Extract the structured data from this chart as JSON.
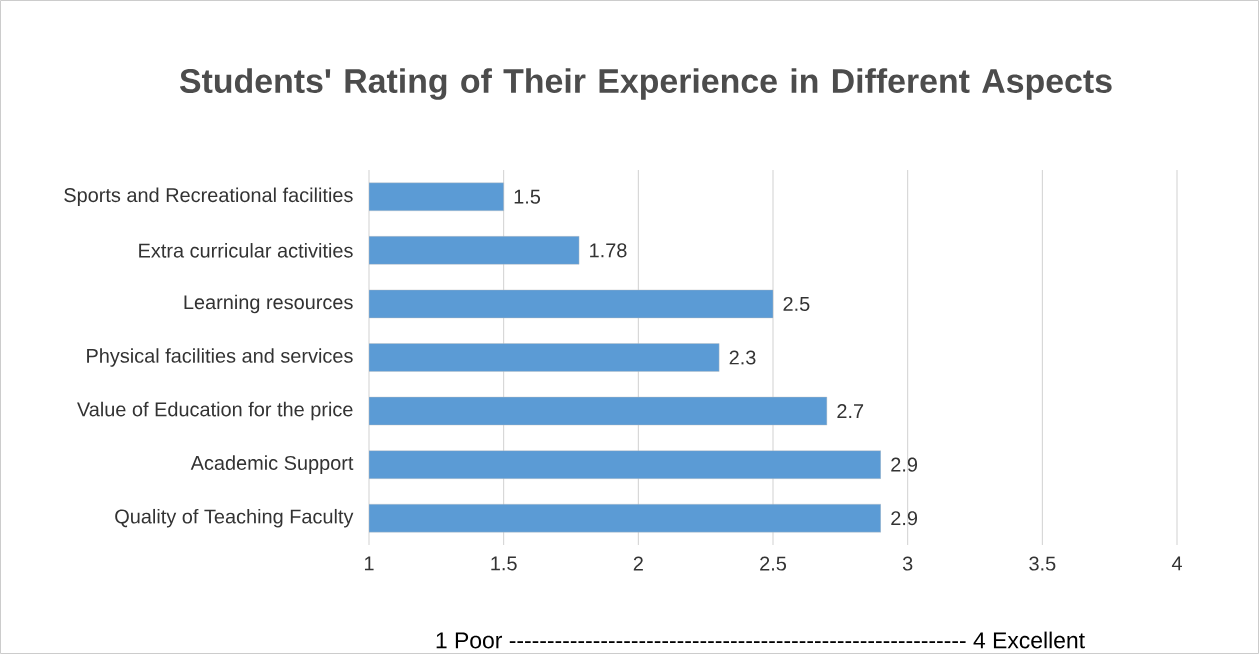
{
  "chart_data": {
    "type": "bar",
    "orientation": "horizontal",
    "title": "Students' Rating of Their Experience in Different Aspects",
    "xlabel": "1 Poor ------------------------------------------------------------ 4 Excellent",
    "categories": [
      "Sports and Recreational facilities",
      "Extra curricular activities",
      "Learning resources",
      "Physical facilities and services",
      "Value of Education for the price",
      "Academic Support",
      "Quality of Teaching Faculty"
    ],
    "values": [
      1.5,
      1.78,
      2.5,
      2.3,
      2.7,
      2.9,
      2.9
    ],
    "color": "#5b9bd5",
    "xlim": [
      1,
      4
    ],
    "xticks": [
      1,
      1.5,
      2,
      2.5,
      3,
      3.5,
      4
    ],
    "grid": "x",
    "data_labels": true
  }
}
